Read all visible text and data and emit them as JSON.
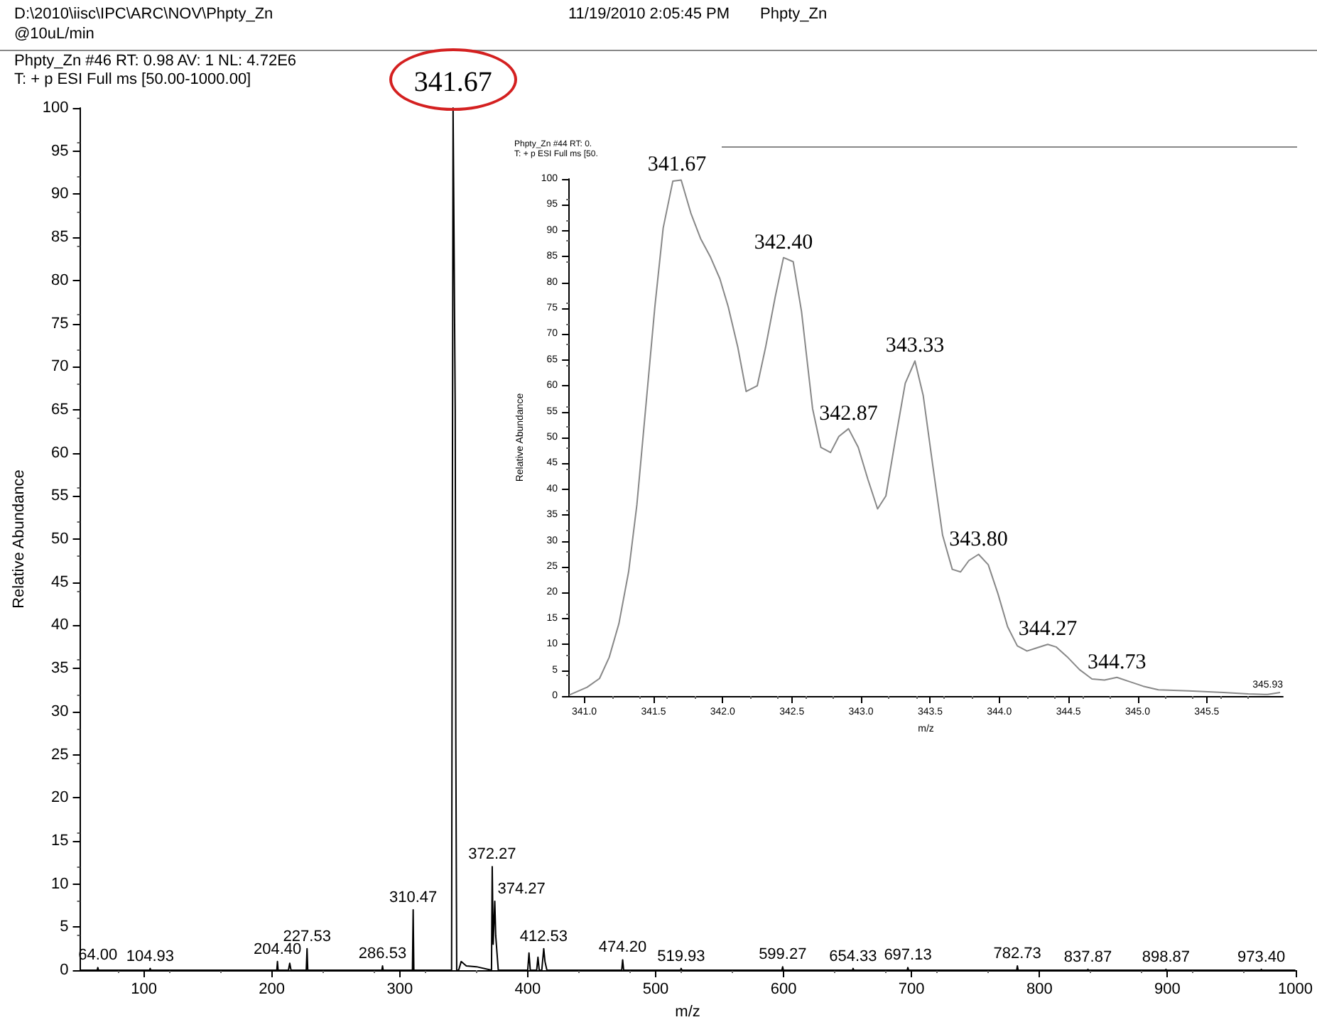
{
  "chart_data": [
    {
      "type": "line",
      "xlabel": "m/z",
      "ylabel": "Relative Abundance",
      "color": "#000000",
      "marker": "none",
      "annotations": [
        "D:\\2010\\iisc\\IPC\\ARC\\NOV\\Phpty_Zn",
        "@10uL/min",
        "11/19/2010 2:05:45 PM",
        "Phpty_Zn",
        "Phpty_Zn #46  RT: 0.98  AV: 1  NL: 4.72E6",
        "T: + p ESI Full ms [50.00-1000.00]",
        {
          "text": "64.00",
          "x": 64,
          "y": 0.3
        },
        {
          "text": "104.93",
          "x": 104.93,
          "y": 0.2
        },
        {
          "text": "204.40",
          "x": 204.4,
          "y": 1
        },
        {
          "text": "227.53",
          "x": 227.53,
          "y": 2.5
        },
        {
          "text": "286.53",
          "x": 286.53,
          "y": 0.5
        },
        {
          "text": "310.47",
          "x": 310.47,
          "y": 7
        },
        {
          "text": "341.67",
          "x": 341.67,
          "y": 100
        },
        {
          "text": "372.27",
          "x": 372.27,
          "y": 12
        },
        {
          "text": "374.27",
          "x": 374.27,
          "y": 8
        },
        {
          "text": "412.53",
          "x": 412.53,
          "y": 2.5
        },
        {
          "text": "474.20",
          "x": 474.2,
          "y": 1.2
        },
        {
          "text": "519.93",
          "x": 519.93,
          "y": 0.2
        },
        {
          "text": "599.27",
          "x": 599.27,
          "y": 0.4
        },
        {
          "text": "654.33",
          "x": 654.33,
          "y": 0.2
        },
        {
          "text": "697.13",
          "x": 697.13,
          "y": 0.3
        },
        {
          "text": "782.73",
          "x": 782.73,
          "y": 0.5
        },
        {
          "text": "837.87",
          "x": 837.87,
          "y": 0.1
        },
        {
          "text": "898.87",
          "x": 898.87,
          "y": 0.1
        },
        {
          "text": "973.40",
          "x": 973.4,
          "y": 0.1
        }
      ],
      "x": [
        50,
        63.5,
        64,
        64.5,
        104.4,
        104.93,
        105.4,
        203.9,
        204.4,
        204.9,
        213,
        214,
        215,
        226.9,
        227.53,
        228.1,
        286,
        286.53,
        287,
        309.9,
        310.47,
        311,
        340.5,
        341.67,
        342.4,
        343.33,
        343.8,
        344.5,
        346,
        348,
        352,
        360,
        371.7,
        372.27,
        373,
        374.27,
        375,
        376,
        377,
        400,
        401,
        402,
        407,
        408,
        409,
        411,
        412.53,
        413.5,
        415,
        473.5,
        474.2,
        475,
        519.4,
        519.93,
        520.5,
        598.7,
        599.27,
        599.8,
        653.8,
        654.33,
        654.9,
        696.6,
        697.13,
        697.7,
        782.2,
        782.73,
        783.3,
        837.4,
        837.87,
        838.4,
        898.3,
        898.87,
        899.4,
        972.9,
        973.4,
        973.9,
        1000
      ],
      "values": [
        0,
        0,
        0.3,
        0,
        0,
        0.2,
        0,
        0,
        1,
        0,
        0,
        0.8,
        0,
        0,
        2.5,
        0,
        0,
        0.5,
        0,
        0,
        7,
        0,
        0,
        100,
        85,
        65,
        27,
        0,
        0,
        1,
        0.5,
        0.4,
        0,
        12,
        3,
        8,
        4,
        2,
        0,
        0,
        2,
        0,
        0,
        1.5,
        0,
        0,
        2.5,
        1,
        0,
        0,
        1.2,
        0,
        0,
        0.2,
        0,
        0,
        0.4,
        0,
        0,
        0.2,
        0,
        0,
        0.3,
        0,
        0,
        0.5,
        0,
        0,
        0.1,
        0,
        0,
        0.1,
        0,
        0,
        0.1,
        0,
        0
      ],
      "xlim": [
        50,
        1000
      ],
      "xticks": [
        100,
        200,
        300,
        400,
        500,
        600,
        700,
        800,
        900,
        1000
      ],
      "ylim": [
        0,
        100
      ],
      "yticks": [
        0,
        5,
        10,
        15,
        20,
        25,
        30,
        35,
        40,
        45,
        50,
        55,
        60,
        65,
        70,
        75,
        80,
        85,
        90,
        95,
        100
      ]
    },
    {
      "type": "line",
      "xlabel": "m/z",
      "ylabel": "Relative Abundance",
      "color": "#888888",
      "marker": "none",
      "annotations": [
        "Phpty_Zn #44  RT: 0.",
        "T: + p ESI Full ms [50.",
        {
          "text": "341.67",
          "x": 341.67,
          "y": 99.8
        },
        {
          "text": "342.40",
          "x": 342.44,
          "y": 84.8
        },
        {
          "text": "342.87",
          "x": 342.91,
          "y": 51.7
        },
        {
          "text": "343.33",
          "x": 343.39,
          "y": 64.8
        },
        {
          "text": "343.80",
          "x": 343.85,
          "y": 27.4
        },
        {
          "text": "344.27",
          "x": 344.35,
          "y": 10
        },
        {
          "text": "344.73",
          "x": 344.85,
          "y": 3.6
        },
        {
          "text": "345.93",
          "x": 345.94,
          "y": 0.3
        }
      ],
      "x": [
        340.89,
        341.02,
        341.11,
        341.18,
        341.25,
        341.32,
        341.38,
        341.45,
        341.51,
        341.57,
        341.64,
        341.7,
        341.77,
        341.84,
        341.91,
        341.98,
        342.04,
        342.11,
        342.17,
        342.25,
        342.31,
        342.38,
        342.44,
        342.51,
        342.57,
        342.65,
        342.71,
        342.78,
        342.84,
        342.91,
        342.98,
        343.05,
        343.12,
        343.18,
        343.25,
        343.32,
        343.39,
        343.45,
        343.52,
        343.59,
        343.66,
        343.72,
        343.78,
        343.85,
        343.92,
        343.99,
        344.06,
        344.13,
        344.2,
        344.27,
        344.35,
        344.41,
        344.49,
        344.58,
        344.67,
        344.76,
        344.85,
        344.94,
        345.04,
        345.15,
        345.37,
        345.62,
        345.8,
        345.94,
        346.03
      ],
      "values": [
        0.2,
        1.7,
        3.4,
        7.5,
        14,
        24,
        37,
        57.6,
        75.3,
        90.5,
        99.6,
        99.8,
        93.4,
        88.5,
        85,
        80.7,
        75.3,
        67.4,
        58.9,
        60,
        67.4,
        77.2,
        84.8,
        84,
        74.4,
        55.6,
        48.1,
        47.1,
        50.2,
        51.7,
        48.1,
        41.9,
        36.2,
        38.7,
        49.8,
        60.5,
        64.8,
        58.1,
        44.4,
        31.1,
        24.5,
        24,
        26.2,
        27.4,
        25.4,
        19.8,
        13.4,
        9.7,
        8.7,
        9.3,
        10,
        9.5,
        7.6,
        5.1,
        3.3,
        3.1,
        3.6,
        2.8,
        1.9,
        1.2,
        1,
        0.7,
        0.4,
        0.3,
        0.7
      ],
      "xlim": [
        340.89,
        346.05
      ],
      "xticks": [
        {
          "value": 341,
          "label": "341.0"
        },
        {
          "value": 341.5,
          "label": "341.5"
        },
        {
          "value": 342,
          "label": "342.0"
        },
        {
          "value": 342.5,
          "label": "342.5"
        },
        {
          "value": 343,
          "label": "343.0"
        },
        {
          "value": 343.5,
          "label": "343.5"
        },
        {
          "value": 344,
          "label": "344.0"
        },
        {
          "value": 344.5,
          "label": "344.5"
        },
        {
          "value": 345,
          "label": "345.0"
        },
        {
          "value": 345.5,
          "label": "345.5"
        }
      ],
      "ylim": [
        0,
        100
      ],
      "yticks": [
        0,
        5,
        10,
        15,
        20,
        25,
        30,
        35,
        40,
        45,
        50,
        55,
        60,
        65,
        70,
        75,
        80,
        85,
        90,
        95,
        100
      ]
    }
  ]
}
